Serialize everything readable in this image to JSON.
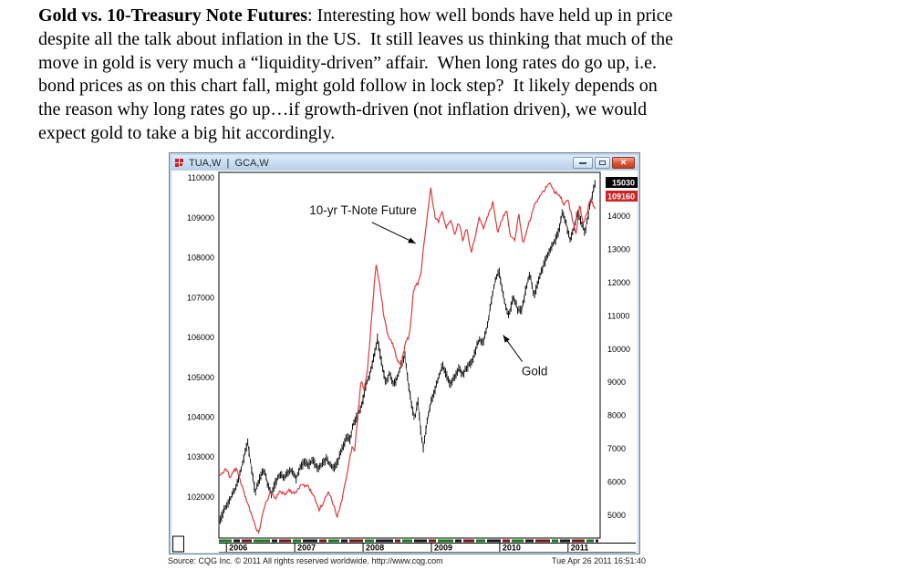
{
  "intro": {
    "lines": [
      {
        "bold": "Gold vs. 10-Treasury Note Futures",
        "text": ": Interesting how well bonds have held up in price"
      },
      {
        "text": "despite all the talk about inflation in the US.  It still leaves us thinking that much of the"
      },
      {
        "text": "move in gold is very much a “liquidity-driven” affair.  When long rates do go up, i.e."
      },
      {
        "text": "bond prices as on this chart fall, might gold follow in lock step?  It likely depends on"
      },
      {
        "text": "the reason why long rates go up…if growth-driven (not inflation driven), we would"
      },
      {
        "text": "expect gold to take a big hit accordingly."
      }
    ]
  },
  "window": {
    "title": "TUA,W  |  GCA,W",
    "controls": [
      "minimize-icon",
      "restore-icon",
      "close-icon"
    ],
    "close_glyph": "✕"
  },
  "statusbar": {
    "source": "Source: CQG Inc. © 2011 All rights reserved worldwide. http://www.cqg.com",
    "timestamp": "Tue Apr 26 2011 16:51:40"
  },
  "chart_data": {
    "type": "line",
    "title": "Gold vs. 10-yr Treasury Note futures, weekly (CQG)",
    "x_axis": {
      "domain": [
        2005.89,
        2011.47
      ],
      "ticks": [
        2006,
        2007,
        2008,
        2009,
        2010,
        2011
      ]
    },
    "left_axis": {
      "domain": [
        100970,
        110140
      ],
      "ticks": [
        102000,
        103000,
        104000,
        105000,
        106000,
        107000,
        108000,
        109000,
        110000
      ]
    },
    "right_axis": {
      "domain": [
        4310,
        15320
      ],
      "ticks": [
        5000,
        6000,
        7000,
        8000,
        9000,
        10000,
        11000,
        12000,
        13000,
        14000
      ]
    },
    "last_prices": [
      {
        "label": "15030",
        "bg": "#000000",
        "fg": "#ffffff"
      },
      {
        "label": "109160",
        "bg": "#cc2222",
        "fg": "#ffffff"
      }
    ],
    "series": [
      {
        "name": "Gold",
        "axis": "right",
        "style": "bars",
        "color": "#161616",
        "points": [
          [
            2005.89,
            4750
          ],
          [
            2005.94,
            5000
          ],
          [
            2006.0,
            5300
          ],
          [
            2006.06,
            5500
          ],
          [
            2006.12,
            5750
          ],
          [
            2006.18,
            6100
          ],
          [
            2006.24,
            6600
          ],
          [
            2006.31,
            7200
          ],
          [
            2006.36,
            6500
          ],
          [
            2006.42,
            5690
          ],
          [
            2006.49,
            6100
          ],
          [
            2006.55,
            6380
          ],
          [
            2006.61,
            5900
          ],
          [
            2006.66,
            5650
          ],
          [
            2006.72,
            6000
          ],
          [
            2006.78,
            6250
          ],
          [
            2006.84,
            6100
          ],
          [
            2006.9,
            6300
          ],
          [
            2006.96,
            6350
          ],
          [
            2007.02,
            6100
          ],
          [
            2007.08,
            6450
          ],
          [
            2007.14,
            6600
          ],
          [
            2007.2,
            6500
          ],
          [
            2007.27,
            6650
          ],
          [
            2007.33,
            6400
          ],
          [
            2007.4,
            6550
          ],
          [
            2007.46,
            6700
          ],
          [
            2007.52,
            6500
          ],
          [
            2007.58,
            6420
          ],
          [
            2007.64,
            6700
          ],
          [
            2007.7,
            7000
          ],
          [
            2007.76,
            7350
          ],
          [
            2007.81,
            7250
          ],
          [
            2007.86,
            7800
          ],
          [
            2007.92,
            8000
          ],
          [
            2007.98,
            8300
          ],
          [
            2008.04,
            8900
          ],
          [
            2008.1,
            9250
          ],
          [
            2008.16,
            9800
          ],
          [
            2008.21,
            10300
          ],
          [
            2008.27,
            9600
          ],
          [
            2008.33,
            9000
          ],
          [
            2008.39,
            9300
          ],
          [
            2008.45,
            8900
          ],
          [
            2008.51,
            9200
          ],
          [
            2008.57,
            9600
          ],
          [
            2008.61,
            9850
          ],
          [
            2008.66,
            9000
          ],
          [
            2008.71,
            8300
          ],
          [
            2008.76,
            7900
          ],
          [
            2008.8,
            8500
          ],
          [
            2008.84,
            7600
          ],
          [
            2008.88,
            7000
          ],
          [
            2008.93,
            7700
          ],
          [
            2008.98,
            8300
          ],
          [
            2009.04,
            8700
          ],
          [
            2009.1,
            9100
          ],
          [
            2009.16,
            9500
          ],
          [
            2009.22,
            9200
          ],
          [
            2009.28,
            8950
          ],
          [
            2009.34,
            9150
          ],
          [
            2009.4,
            9400
          ],
          [
            2009.46,
            9250
          ],
          [
            2009.52,
            9450
          ],
          [
            2009.58,
            9600
          ],
          [
            2009.64,
            9900
          ],
          [
            2009.7,
            10300
          ],
          [
            2009.76,
            10200
          ],
          [
            2009.82,
            10700
          ],
          [
            2009.88,
            11500
          ],
          [
            2009.94,
            12100
          ],
          [
            2009.99,
            12350
          ],
          [
            2010.06,
            11500
          ],
          [
            2010.13,
            10970
          ],
          [
            2010.2,
            11600
          ],
          [
            2010.26,
            11200
          ],
          [
            2010.32,
            11140
          ],
          [
            2010.38,
            11800
          ],
          [
            2010.44,
            12290
          ],
          [
            2010.5,
            11600
          ],
          [
            2010.56,
            12000
          ],
          [
            2010.62,
            12400
          ],
          [
            2010.69,
            12790
          ],
          [
            2010.76,
            13100
          ],
          [
            2010.83,
            13340
          ],
          [
            2010.88,
            13700
          ],
          [
            2010.92,
            14140
          ],
          [
            2010.97,
            13800
          ],
          [
            2011.03,
            13260
          ],
          [
            2011.09,
            13700
          ],
          [
            2011.14,
            14080
          ],
          [
            2011.2,
            13750
          ],
          [
            2011.25,
            13530
          ],
          [
            2011.3,
            14100
          ],
          [
            2011.35,
            14600
          ],
          [
            2011.4,
            15030
          ]
        ]
      },
      {
        "name": "10-yr T-Note Future",
        "axis": "left",
        "style": "line",
        "color": "#dd3c3c",
        "points": [
          [
            2005.89,
            102550
          ],
          [
            2005.95,
            102620
          ],
          [
            2006.0,
            102700
          ],
          [
            2006.05,
            102500
          ],
          [
            2006.1,
            102650
          ],
          [
            2006.16,
            102700
          ],
          [
            2006.22,
            102300
          ],
          [
            2006.3,
            101900
          ],
          [
            2006.38,
            101500
          ],
          [
            2006.44,
            101200
          ],
          [
            2006.47,
            101080
          ],
          [
            2006.52,
            101500
          ],
          [
            2006.58,
            101900
          ],
          [
            2006.65,
            102080
          ],
          [
            2006.72,
            101950
          ],
          [
            2006.78,
            102180
          ],
          [
            2006.85,
            102050
          ],
          [
            2006.92,
            102160
          ],
          [
            2007.0,
            102100
          ],
          [
            2007.08,
            102280
          ],
          [
            2007.18,
            102300
          ],
          [
            2007.27,
            102050
          ],
          [
            2007.36,
            101690
          ],
          [
            2007.42,
            101850
          ],
          [
            2007.49,
            102170
          ],
          [
            2007.55,
            101900
          ],
          [
            2007.62,
            101500
          ],
          [
            2007.68,
            101850
          ],
          [
            2007.74,
            102350
          ],
          [
            2007.8,
            102900
          ],
          [
            2007.84,
            103300
          ],
          [
            2007.88,
            103150
          ],
          [
            2007.92,
            104000
          ],
          [
            2007.97,
            104900
          ],
          [
            2008.02,
            104700
          ],
          [
            2008.07,
            105300
          ],
          [
            2008.12,
            106400
          ],
          [
            2008.19,
            107840
          ],
          [
            2008.25,
            107250
          ],
          [
            2008.3,
            106600
          ],
          [
            2008.36,
            106050
          ],
          [
            2008.44,
            105800
          ],
          [
            2008.5,
            105450
          ],
          [
            2008.56,
            105280
          ],
          [
            2008.62,
            105900
          ],
          [
            2008.68,
            106050
          ],
          [
            2008.74,
            107200
          ],
          [
            2008.8,
            107350
          ],
          [
            2008.85,
            107650
          ],
          [
            2008.9,
            108490
          ],
          [
            2008.95,
            109200
          ],
          [
            2008.99,
            109750
          ],
          [
            2009.05,
            109050
          ],
          [
            2009.1,
            108900
          ],
          [
            2009.16,
            109150
          ],
          [
            2009.22,
            108750
          ],
          [
            2009.28,
            108950
          ],
          [
            2009.34,
            108600
          ],
          [
            2009.4,
            108900
          ],
          [
            2009.46,
            108450
          ],
          [
            2009.52,
            108750
          ],
          [
            2009.58,
            108120
          ],
          [
            2009.64,
            108500
          ],
          [
            2009.7,
            109000
          ],
          [
            2009.76,
            108720
          ],
          [
            2009.84,
            109100
          ],
          [
            2009.9,
            109380
          ],
          [
            2009.97,
            108650
          ],
          [
            2010.04,
            109000
          ],
          [
            2010.1,
            109200
          ],
          [
            2010.16,
            108500
          ],
          [
            2010.22,
            108420
          ],
          [
            2010.28,
            109100
          ],
          [
            2010.34,
            108350
          ],
          [
            2010.42,
            108800
          ],
          [
            2010.5,
            109300
          ],
          [
            2010.58,
            109520
          ],
          [
            2010.66,
            109700
          ],
          [
            2010.72,
            109900
          ],
          [
            2010.8,
            109650
          ],
          [
            2010.88,
            109550
          ],
          [
            2010.94,
            109350
          ],
          [
            2011.0,
            109450
          ],
          [
            2011.06,
            108990
          ],
          [
            2011.12,
            108580
          ],
          [
            2011.17,
            109330
          ],
          [
            2011.22,
            108830
          ],
          [
            2011.28,
            109150
          ],
          [
            2011.33,
            109500
          ],
          [
            2011.4,
            109160
          ]
        ]
      }
    ],
    "annotations": [
      {
        "text": "10-yr T-Note Future",
        "axis": "left",
        "tx": 2008.0,
        "ty": 109180,
        "arrow": {
          "x1": 2008.13,
          "y1": 108886,
          "x2": 2008.77,
          "y2": 108361
        }
      },
      {
        "text": "Gold",
        "axis": "right",
        "tx": 2010.51,
        "ty": 9320,
        "arrow": {
          "x1": 2010.33,
          "y1": 9620,
          "x2": 2010.05,
          "y2": 10420
        }
      }
    ],
    "session_strip": {
      "colors": [
        "#117711",
        "#151515",
        "#6e1212"
      ],
      "pattern": [
        16,
        9,
        13,
        20,
        8,
        15,
        11,
        18,
        10,
        14,
        9,
        17,
        12,
        21,
        8,
        13,
        16,
        10,
        19,
        9,
        14,
        12,
        17,
        10,
        15,
        11,
        18,
        9,
        13,
        16,
        10,
        14
      ]
    }
  }
}
